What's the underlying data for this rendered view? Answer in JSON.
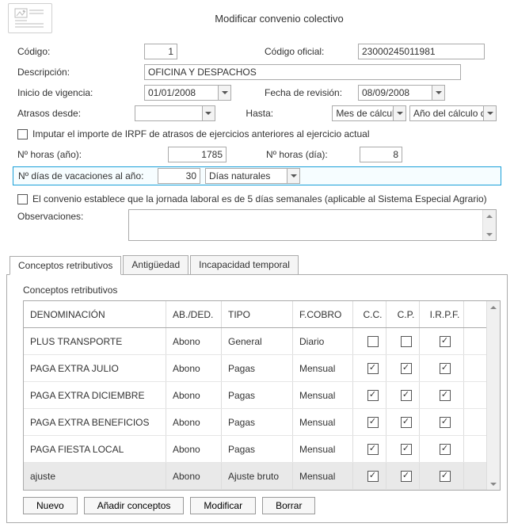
{
  "header": {
    "title": "Modificar convenio colectivo"
  },
  "form": {
    "codigo": {
      "label": "Código:",
      "value": "1"
    },
    "codigo_oficial": {
      "label": "Código oficial:",
      "value": "23000245011981"
    },
    "descripcion": {
      "label": "Descripción:",
      "value": "OFICINA Y DESPACHOS"
    },
    "inicio_vigencia": {
      "label": "Inicio de vigencia:",
      "value": "01/01/2008"
    },
    "fecha_revision": {
      "label": "Fecha de revisión:",
      "value": "08/09/2008"
    },
    "atrasos_desde": {
      "label": "Atrasos desde:",
      "value": ""
    },
    "hasta": {
      "label": "Hasta:",
      "mes": "Mes de cálculo",
      "anio": "Año del cálculo d"
    },
    "imputar_irpf": {
      "label": "Imputar el importe de IRPF de atrasos de ejercicios anteriores al ejercicio actual",
      "checked": false
    },
    "horas_anio": {
      "label": "Nº horas (año):",
      "value": "1785"
    },
    "horas_dia": {
      "label": "Nº horas (día):",
      "value": "8"
    },
    "dias_vac": {
      "label": "Nº días de vacaciones al año:",
      "value": "30",
      "tipo": "Días naturales"
    },
    "jornada5": {
      "label": "El convenio establece que la jornada laboral es de 5 días semanales (aplicable al Sistema Especial Agrario)",
      "checked": false
    },
    "observaciones": {
      "label": "Observaciones:",
      "value": ""
    }
  },
  "tabs": {
    "t1": "Conceptos retributivos",
    "t2": "Antigüedad",
    "t3": "Incapacidad temporal",
    "active": 0
  },
  "table": {
    "title": "Conceptos retributivos",
    "columns": {
      "denominacion": "DENOMINACIÓN",
      "abded": "AB./DED.",
      "tipo": "TIPO",
      "fcobro": "F.COBRO",
      "cc": "C.C.",
      "cp": "C.P.",
      "irpf": "I.R.P.F."
    },
    "rows": [
      {
        "den": "PLUS TRANSPORTE",
        "ab": "Abono",
        "tipo": "General",
        "fc": "Diario",
        "cc": false,
        "cp": false,
        "irpf": true,
        "sel": false
      },
      {
        "den": "PAGA EXTRA JULIO",
        "ab": "Abono",
        "tipo": "Pagas",
        "fc": "Mensual",
        "cc": true,
        "cp": true,
        "irpf": true,
        "sel": false
      },
      {
        "den": "PAGA EXTRA DICIEMBRE",
        "ab": "Abono",
        "tipo": "Pagas",
        "fc": "Mensual",
        "cc": true,
        "cp": true,
        "irpf": true,
        "sel": false
      },
      {
        "den": "PAGA EXTRA BENEFICIOS",
        "ab": "Abono",
        "tipo": "Pagas",
        "fc": "Mensual",
        "cc": true,
        "cp": true,
        "irpf": true,
        "sel": false
      },
      {
        "den": "PAGA FIESTA LOCAL",
        "ab": "Abono",
        "tipo": "Pagas",
        "fc": "Mensual",
        "cc": true,
        "cp": true,
        "irpf": true,
        "sel": false
      },
      {
        "den": "ajuste",
        "ab": "Abono",
        "tipo": "Ajuste bruto",
        "fc": "Mensual",
        "cc": true,
        "cp": true,
        "irpf": true,
        "sel": true
      }
    ]
  },
  "buttons": {
    "nuevo": "Nuevo",
    "anadir": "Añadir conceptos",
    "modificar": "Modificar",
    "borrar": "Borrar"
  }
}
